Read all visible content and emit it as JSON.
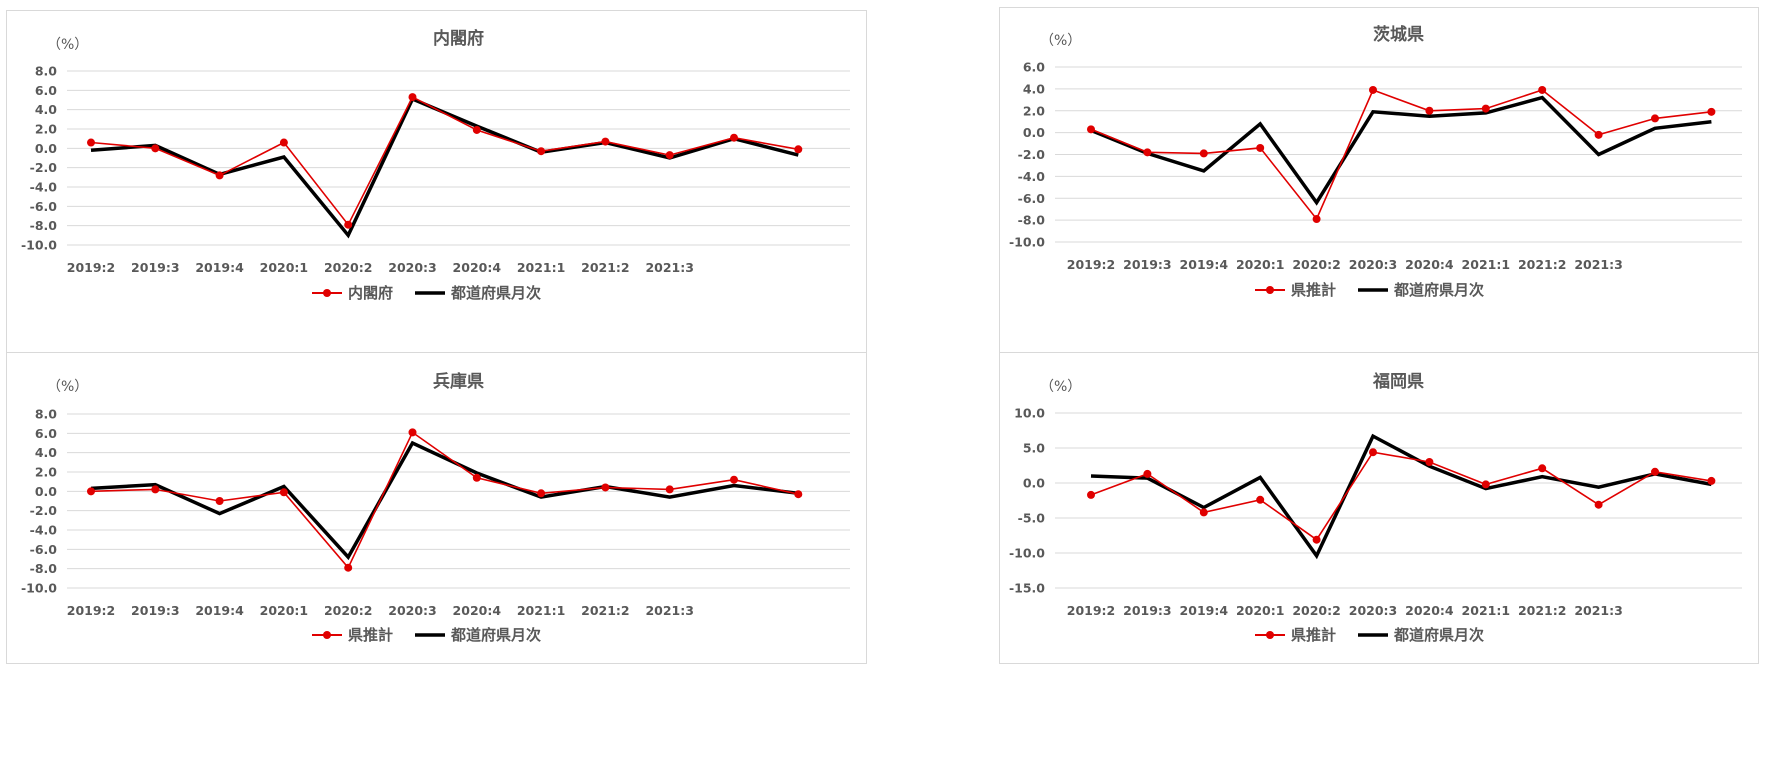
{
  "colors": {
    "red": "#e00000",
    "black": "#000000",
    "grid": "#d9d9d9",
    "text": "#595959"
  },
  "chart_data": [
    {
      "type": "line",
      "title": "内閣府",
      "ylabel": "（%）",
      "ylim": [
        -10,
        8
      ],
      "yticks": [
        "8.0",
        "6.0",
        "4.0",
        "2.0",
        "0.0",
        "-2.0",
        "-4.0",
        "-6.0",
        "-8.0",
        "-10.0"
      ],
      "yticks_values": [
        8,
        6,
        4,
        2,
        0,
        -2,
        -4,
        -6,
        -8,
        -10
      ],
      "categories": [
        "2019:2",
        "2019:3",
        "2019:4",
        "2020:1",
        "2020:2",
        "2020:3",
        "2020:4",
        "2021:1",
        "2021:2",
        "2021:3",
        "",
        ""
      ],
      "grid": true,
      "legend": "bottom",
      "series": [
        {
          "name": "内閣府",
          "color": "#e00000",
          "marker": true,
          "values": [
            0.6,
            0.0,
            -2.8,
            0.6,
            -7.9,
            5.3,
            1.9,
            -0.3,
            0.7,
            -0.7,
            1.1,
            -0.1
          ]
        },
        {
          "name": "都道府県月次",
          "color": "#000000",
          "marker": false,
          "values": [
            -0.2,
            0.3,
            -2.7,
            -0.9,
            -9.0,
            5.1,
            2.3,
            -0.4,
            0.6,
            -1.0,
            1.0,
            -0.7
          ]
        }
      ]
    },
    {
      "type": "line",
      "title": "茨城県",
      "ylabel": "（%）",
      "ylim": [
        -10,
        6
      ],
      "yticks": [
        "6.0",
        "4.0",
        "2.0",
        "0.0",
        "-2.0",
        "-4.0",
        "-6.0",
        "-8.0",
        "-10.0"
      ],
      "yticks_values": [
        6,
        4,
        2,
        0,
        -2,
        -4,
        -6,
        -8,
        -10
      ],
      "categories": [
        "2019:2",
        "2019:3",
        "2019:4",
        "2020:1",
        "2020:2",
        "2020:3",
        "2020:4",
        "2021:1",
        "2021:2",
        "2021:3",
        "",
        ""
      ],
      "grid": true,
      "legend": "bottom",
      "series": [
        {
          "name": "県推計",
          "color": "#e00000",
          "marker": true,
          "values": [
            0.3,
            -1.8,
            -1.9,
            -1.4,
            -7.9,
            3.9,
            2.0,
            2.2,
            3.9,
            -0.2,
            1.3,
            1.9
          ]
        },
        {
          "name": "都道府県月次",
          "color": "#000000",
          "marker": false,
          "values": [
            0.2,
            -1.9,
            -3.5,
            0.8,
            -6.4,
            1.9,
            1.5,
            1.8,
            3.2,
            -2.0,
            0.4,
            1.0
          ]
        }
      ]
    },
    {
      "type": "line",
      "title": "兵庫県",
      "ylabel": "（%）",
      "ylim": [
        -10,
        8
      ],
      "yticks": [
        "8.0",
        "6.0",
        "4.0",
        "2.0",
        "0.0",
        "-2.0",
        "-4.0",
        "-6.0",
        "-8.0",
        "-10.0"
      ],
      "yticks_values": [
        8,
        6,
        4,
        2,
        0,
        -2,
        -4,
        -6,
        -8,
        -10
      ],
      "categories": [
        "2019:2",
        "2019:3",
        "2019:4",
        "2020:1",
        "2020:2",
        "2020:3",
        "2020:4",
        "2021:1",
        "2021:2",
        "2021:3",
        "",
        ""
      ],
      "grid": true,
      "legend": "bottom",
      "series": [
        {
          "name": "県推計",
          "color": "#e00000",
          "marker": true,
          "values": [
            0.0,
            0.2,
            -1.0,
            -0.1,
            -7.9,
            6.1,
            1.4,
            -0.2,
            0.4,
            0.2,
            1.2,
            -0.3
          ]
        },
        {
          "name": "都道府県月次",
          "color": "#000000",
          "marker": false,
          "values": [
            0.3,
            0.7,
            -2.3,
            0.5,
            -6.8,
            5.0,
            1.9,
            -0.6,
            0.5,
            -0.6,
            0.6,
            -0.2
          ]
        }
      ]
    },
    {
      "type": "line",
      "title": "福岡県",
      "ylabel": "（%）",
      "ylim": [
        -15,
        10
      ],
      "yticks": [
        "10.0",
        "5.0",
        "0.0",
        "-5.0",
        "-10.0",
        "-15.0"
      ],
      "yticks_values": [
        10,
        5,
        0,
        -5,
        -10,
        -15
      ],
      "categories": [
        "2019:2",
        "2019:3",
        "2019:4",
        "2020:1",
        "2020:2",
        "2020:3",
        "2020:4",
        "2021:1",
        "2021:2",
        "2021:3",
        "",
        ""
      ],
      "grid": true,
      "legend": "bottom",
      "series": [
        {
          "name": "県推計",
          "color": "#e00000",
          "marker": true,
          "values": [
            -1.7,
            1.3,
            -4.2,
            -2.4,
            -8.1,
            4.4,
            3.0,
            -0.2,
            2.1,
            -3.1,
            1.6,
            0.3
          ]
        },
        {
          "name": "都道府県月次",
          "color": "#000000",
          "marker": false,
          "values": [
            1.0,
            0.7,
            -3.5,
            0.8,
            -10.4,
            6.7,
            2.4,
            -0.8,
            0.9,
            -0.6,
            1.3,
            -0.2
          ]
        }
      ]
    }
  ]
}
